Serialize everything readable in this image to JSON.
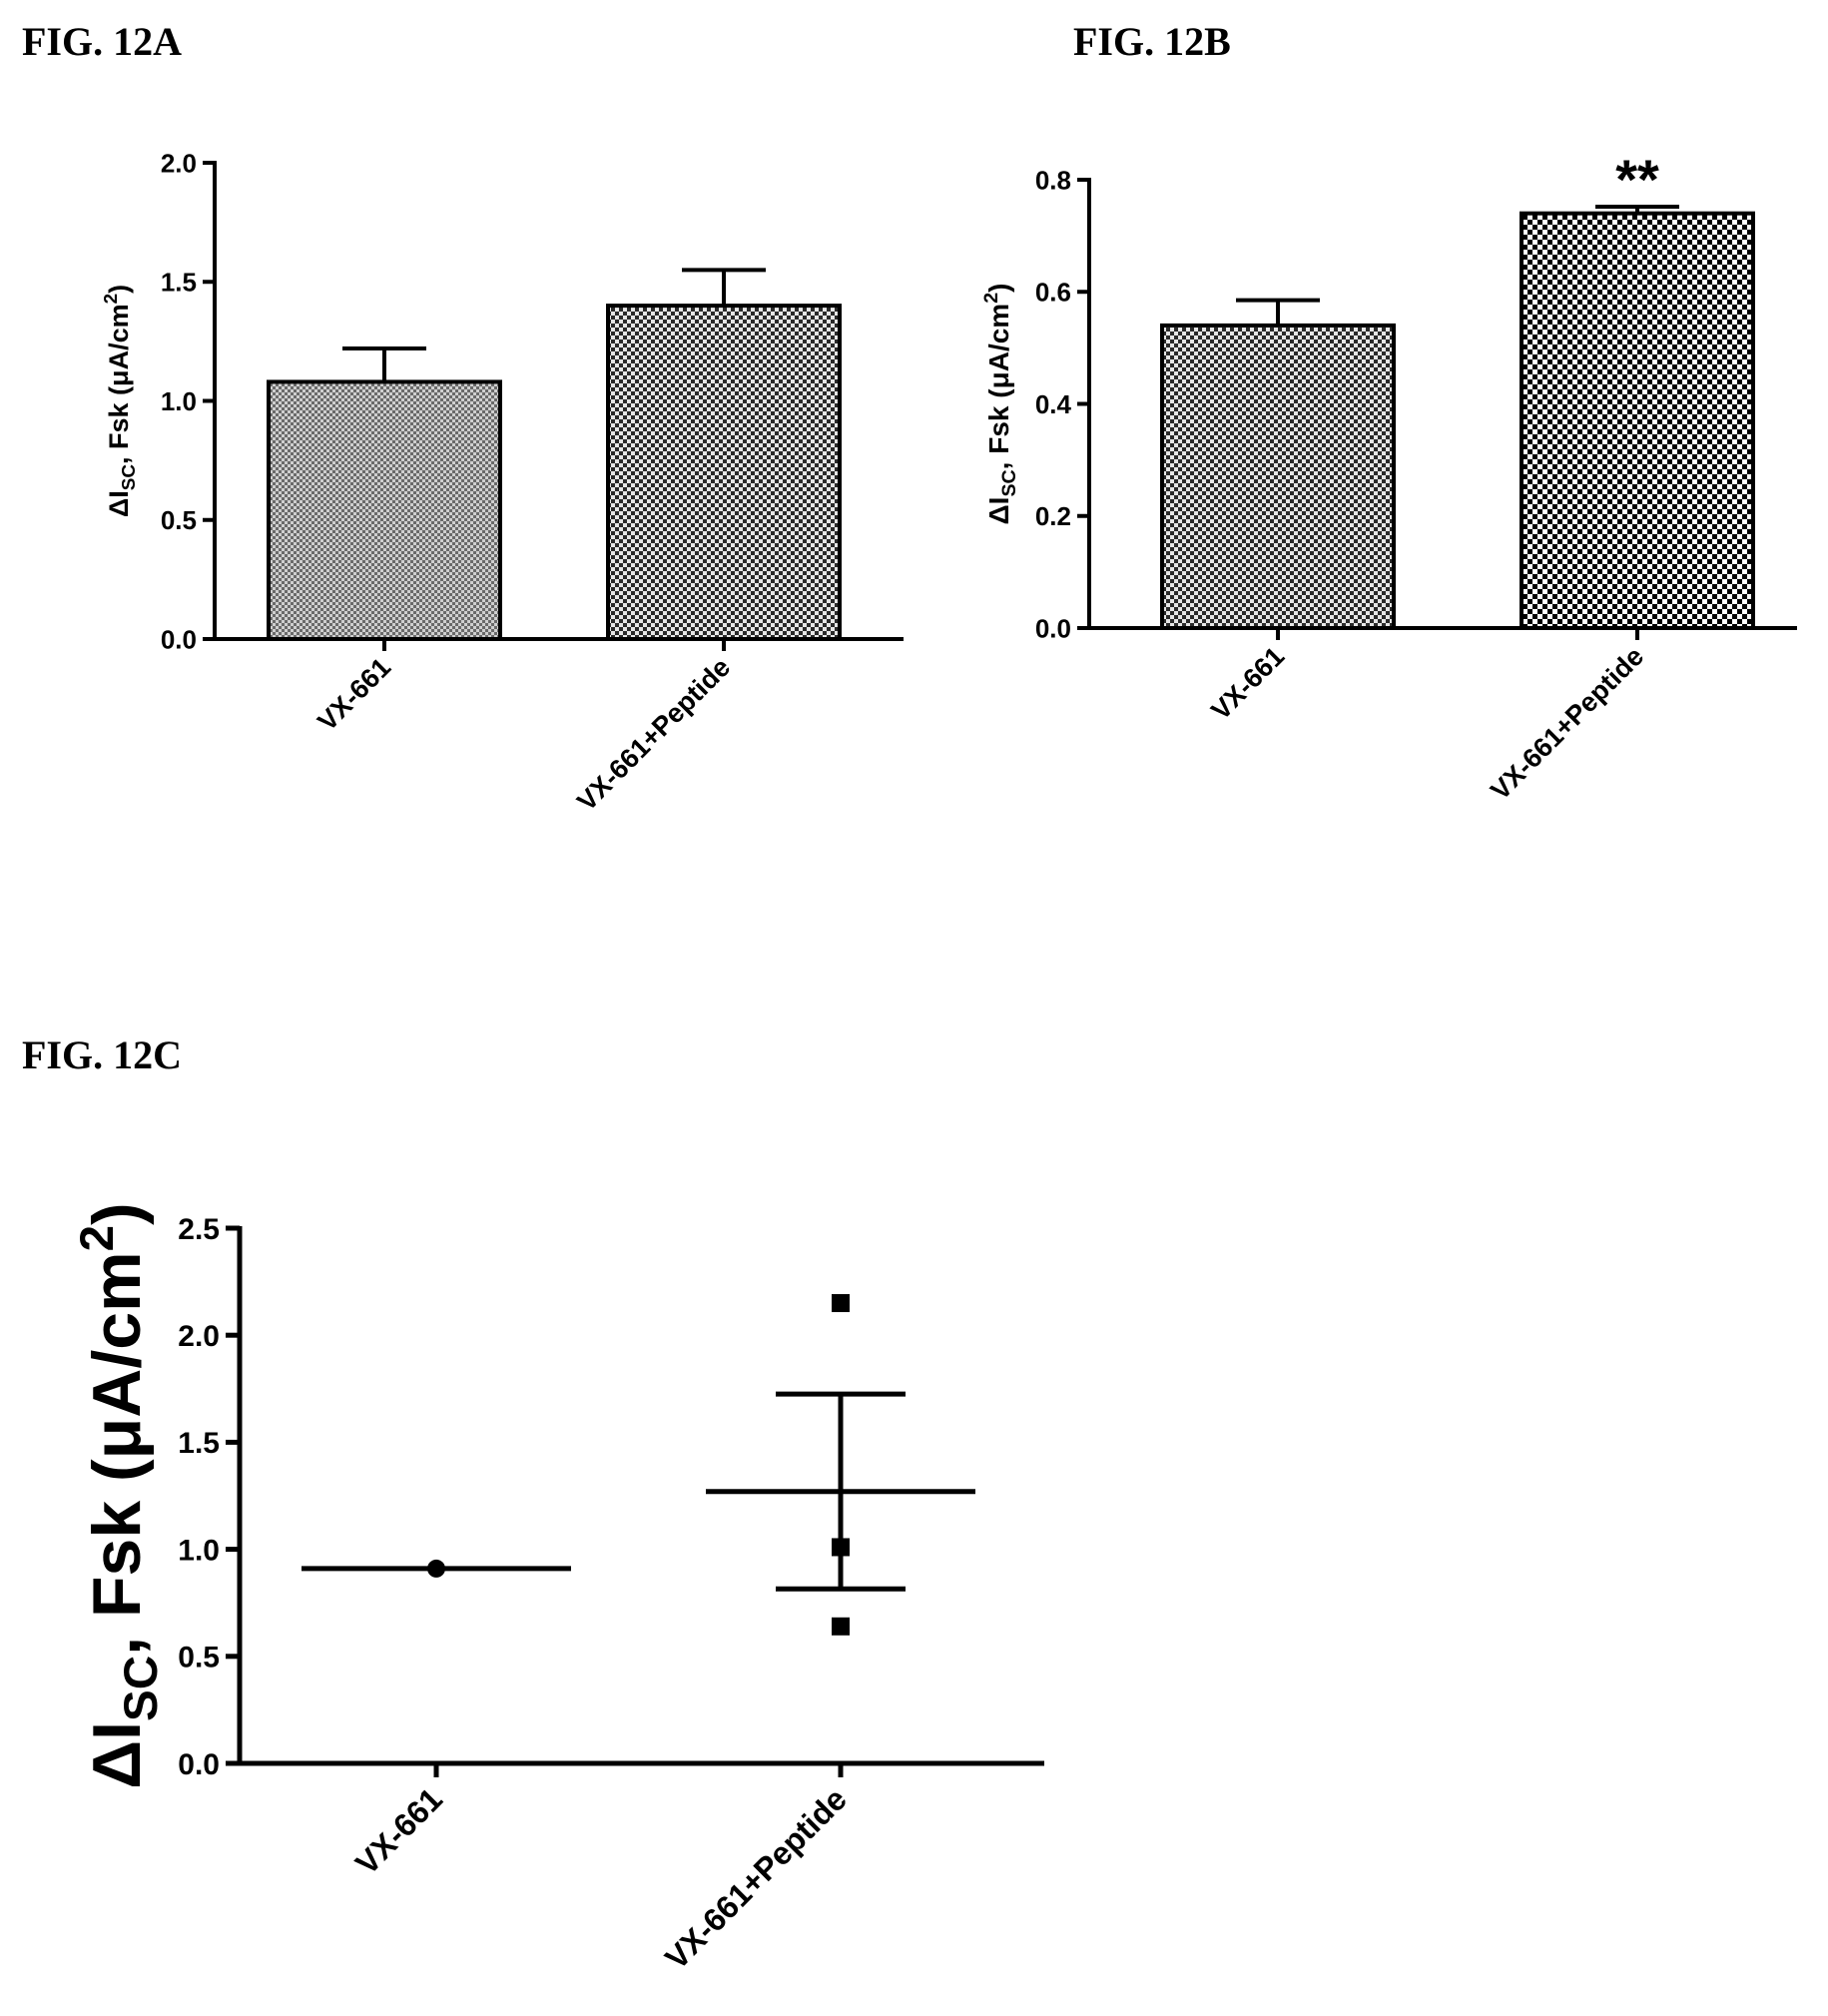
{
  "figures": {
    "a": {
      "label": "FIG. 12A"
    },
    "b": {
      "label": "FIG. 12B"
    },
    "c": {
      "label": "FIG. 12C"
    }
  },
  "chart_data": [
    {
      "id": "a",
      "type": "bar",
      "title": "FIG. 12A",
      "ylabel": {
        "delta": "Δ",
        "sym": "I",
        "sub": "SC",
        "rest": ", Fsk (μA/cm",
        "sup": "2",
        "close": ")"
      },
      "categories": [
        "VX-661",
        "VX-661+Peptide"
      ],
      "values": [
        1.08,
        1.4
      ],
      "errors": [
        0.14,
        0.15
      ],
      "ylim": [
        0,
        2.0
      ],
      "yticks": [
        "0.0",
        "0.5",
        "1.0",
        "1.5",
        "2.0"
      ],
      "annotations": [],
      "grid": false,
      "pattern": [
        "dense",
        "check"
      ]
    },
    {
      "id": "b",
      "type": "bar",
      "title": "FIG. 12B",
      "ylabel": {
        "delta": "Δ",
        "sym": "I",
        "sub": "SC",
        "rest": ", Fsk (μA/cm",
        "sup": "2",
        "close": ")"
      },
      "categories": [
        "VX-661",
        "VX-661+Peptide"
      ],
      "values": [
        0.54,
        0.74
      ],
      "errors": [
        0.045,
        0.012
      ],
      "ylim": [
        0,
        0.8
      ],
      "yticks": [
        "0.0",
        "0.2",
        "0.4",
        "0.6",
        "0.8"
      ],
      "annotations": [
        "",
        "**"
      ],
      "grid": false,
      "pattern": [
        "check",
        "checkBig"
      ]
    },
    {
      "id": "c",
      "type": "scatter",
      "title": "FIG. 12C",
      "ylabel": {
        "delta": "Δ",
        "sym": "I",
        "sub": "SC",
        "rest": ", Fsk (μA/cm",
        "sup": "2",
        "close": ")"
      },
      "categories": [
        "VX-661",
        "VX-661+Peptide"
      ],
      "series": [
        {
          "category": "VX-661",
          "marker": "circle",
          "points": [
            0.91
          ],
          "mean": 0.91,
          "sem": null
        },
        {
          "category": "VX-661+Peptide",
          "marker": "square",
          "points": [
            2.15,
            1.01,
            0.64
          ],
          "mean": 1.27,
          "sem": 0.455
        }
      ],
      "ylim": [
        0,
        2.5
      ],
      "yticks": [
        "0.0",
        "0.5",
        "1.0",
        "1.5",
        "2.0",
        "2.5"
      ],
      "grid": false
    }
  ]
}
